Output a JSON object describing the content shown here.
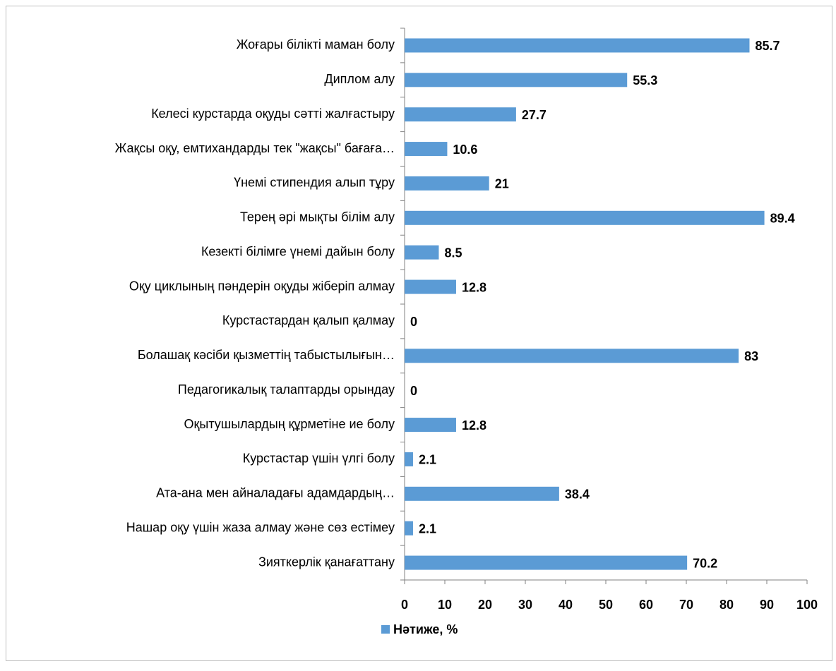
{
  "chart_data": {
    "type": "bar",
    "orientation": "horizontal",
    "categories": [
      "Жоғары білікті маман болу",
      "Диплом алу",
      "Келесі курстарда оқуды сәтті жалғастыру",
      "Жақсы оқу, емтихандарды тек \"жақсы\" бағаға…",
      "Үнемі стипендия алып тұру",
      "Терең әрі мықты білім алу",
      "Кезекті білімге үнемі дайын болу",
      "Оқу циклының пәндерін оқуды жіберіп алмау",
      "Курстастардан қалып қалмау",
      "Болашақ кәсіби қызметтің табыстылығын…",
      "Педагогикалық талаптарды орындау",
      "Оқытушылардың құрметіне ие болу",
      "Курстастар үшін үлгі болу",
      "Ата-ана мен айналадағы адамдардың…",
      "Нашар оқу үшін жаза алмау және сөз естімеу",
      "Зияткерлік қанағаттану"
    ],
    "series": [
      {
        "name": "Нәтиже, %",
        "color": "#5b9bd5",
        "values": [
          85.7,
          55.3,
          27.7,
          10.6,
          21,
          89.4,
          8.5,
          12.8,
          0,
          83,
          0,
          12.8,
          2.1,
          38.4,
          2.1,
          70.2
        ]
      }
    ],
    "xlim": [
      0,
      100
    ],
    "xticks": [
      0,
      10,
      20,
      30,
      40,
      50,
      60,
      70,
      80,
      90,
      100
    ],
    "legend": "bottom"
  }
}
